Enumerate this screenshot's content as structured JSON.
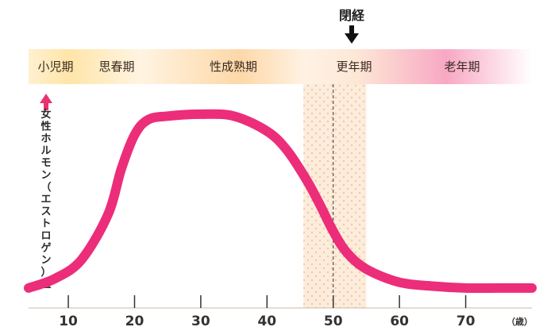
{
  "menopause_label": "閉経",
  "stages": [
    {
      "label": "小児期"
    },
    {
      "label": "思春期"
    },
    {
      "label": "性成熟期"
    },
    {
      "label": "更年期"
    },
    {
      "label": "老年期"
    }
  ],
  "colors": {
    "curve": "#ec2d7a",
    "stage_bar": "#fde2c4",
    "menopause_band": "#fbe3cc",
    "arrow": "#e8336f"
  },
  "chart_data": {
    "type": "line",
    "ylabel": "女性ホルモン（エストロゲン）量",
    "xlabel": "",
    "x_unit_label": "（歳）",
    "xlim": [
      4,
      80
    ],
    "ylim": [
      0,
      100
    ],
    "ticks": [
      10,
      20,
      30,
      40,
      50,
      60,
      70
    ],
    "menopause_age": 50,
    "menopause_band": [
      45.5,
      55
    ],
    "series": [
      {
        "x": [
          4,
          8,
          12,
          16,
          18,
          20,
          22,
          25,
          30,
          35,
          40,
          43,
          46,
          48,
          50,
          52,
          55,
          60,
          65,
          70,
          75,
          80
        ],
        "y": [
          3,
          8,
          18,
          42,
          66,
          84,
          92,
          94,
          95,
          94,
          86,
          76,
          60,
          47,
          33,
          22,
          13,
          6,
          4,
          3,
          3,
          3
        ]
      }
    ]
  }
}
